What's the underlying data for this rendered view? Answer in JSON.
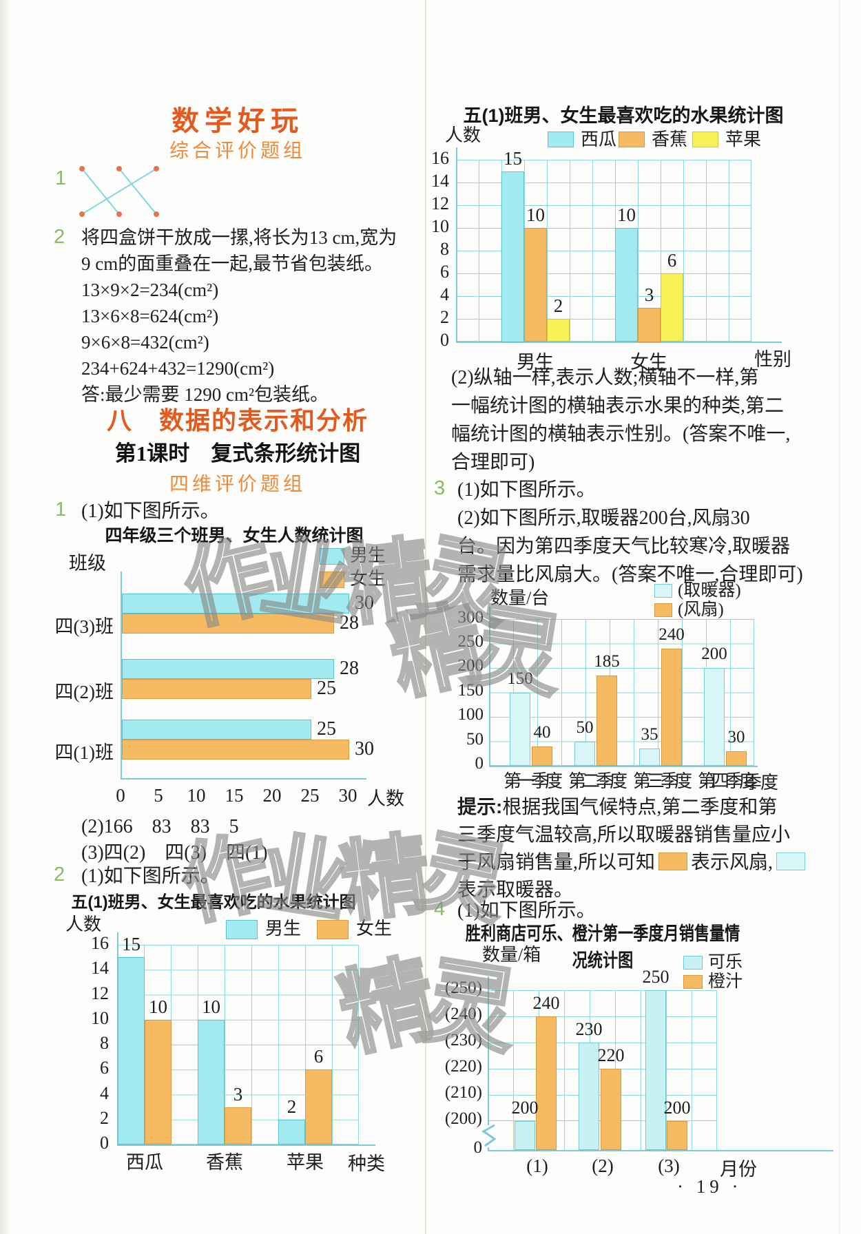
{
  "page": {
    "footer": "· 19 ·",
    "watermark_full": "作业精灵",
    "watermark_short": "精灵",
    "colors": {
      "accent_orange": "#e4591d",
      "sub_orange": "#f08a3a",
      "item_green": "#8cba62",
      "grid_cyan": "#8ed9e0",
      "bar_cyan": "#a3eaf0",
      "bar_orange": "#f6bb62",
      "bar_yellow": "#f5f156",
      "bar_pale_cyan": "#d8f5f7"
    }
  },
  "left": {
    "section_title": "数学好玩",
    "section_subtitle": "综合评价题组",
    "item1_num": "1",
    "item2_num": "2",
    "item2_lines": [
      "将四盒饼干放成一摞,将长为13 cm,宽为",
      "9 cm的面重叠在一起,最节省包装纸。",
      "13×9×2=234(cm²)",
      "13×6×8=624(cm²)",
      "9×6×8=432(cm²)",
      "234+624+432=1290(cm²)",
      "答:最少需要 1290 cm²包装纸。"
    ],
    "chapter_title": "八　数据的表示和分析",
    "lesson_title": "第1课时　复式条形统计图",
    "lesson_subtitle": "四维评价题组",
    "q1_num": "1",
    "q1_a1": "(1)如下图所示。",
    "q1_a2": "(2)166　83　83　5",
    "q1_a3": "(3)四(2)　四(3)　四(1)",
    "q2_num": "2",
    "q2_a1": "(1)如下图所示。"
  },
  "right": {
    "q2_a2_lines": [
      "(2)纵轴一样,表示人数;横轴不一样,第",
      "一幅统计图的横轴表示水果的种类,第二",
      "幅统计图的横轴表示性别。(答案不唯一,",
      "合理即可)"
    ],
    "q3_num": "3",
    "q3_a1": "(1)如下图所示。",
    "q3_a2_lines": [
      "(2)如下图所示,取暖器200台,风扇30",
      "台。因为第四季度天气比较寒冷,取暖器",
      "需求量比风扇大。(答案不唯一,合理即可)"
    ],
    "hint_label": "提示:",
    "hint_l1": "根据我国气候特点,第二季度和第",
    "hint_l2": "三季度气温较高,所以取暖器销售量应小",
    "hint_l3a": "于风扇销售量,所以可知",
    "hint_l3b": "表示风扇,",
    "hint_l4": "表示取暖器。",
    "q4_num": "4",
    "q4_a1": "(1)如下图所示。"
  },
  "chart_data": [
    {
      "id": "class_boy_girl_counts",
      "type": "bar",
      "orientation": "horizontal",
      "title": "四年级三个班男、女生人数统计图",
      "y_axis_name": "班级",
      "x_axis_name": "人数",
      "x_ticks": [
        0,
        5,
        10,
        15,
        20,
        25,
        30
      ],
      "xlim": [
        0,
        30
      ],
      "grid": false,
      "legend_position": "top-right",
      "categories": [
        "四(3)班",
        "四(2)班",
        "四(1)班"
      ],
      "series": [
        {
          "name": "男生",
          "color": "#a3eaf0",
          "values": [
            30,
            28,
            25
          ]
        },
        {
          "name": "女生",
          "color": "#f6bb62",
          "values": [
            28,
            25,
            30
          ]
        }
      ]
    },
    {
      "id": "fruit_by_kind",
      "type": "bar",
      "orientation": "vertical",
      "title": "五(1)班男、女生最喜欢吃的水果统计图",
      "y_axis_name": "人数",
      "x_axis_name": "种类",
      "y_ticks": [
        0,
        2,
        4,
        6,
        8,
        10,
        12,
        14,
        16
      ],
      "ylim": [
        0,
        16
      ],
      "grid": true,
      "legend_position": "top",
      "categories": [
        "西瓜",
        "香蕉",
        "苹果"
      ],
      "series": [
        {
          "name": "男生",
          "color": "#a3eaf0",
          "values": [
            15,
            10,
            2
          ]
        },
        {
          "name": "女生",
          "color": "#f6bb62",
          "values": [
            10,
            3,
            6
          ]
        }
      ]
    },
    {
      "id": "fruit_by_gender",
      "type": "bar",
      "orientation": "vertical",
      "title": "五(1)班男、女生最喜欢吃的水果统计图",
      "y_axis_name": "人数",
      "x_axis_name": "性别",
      "y_ticks": [
        0,
        2,
        4,
        6,
        8,
        10,
        12,
        14,
        16
      ],
      "ylim": [
        0,
        16
      ],
      "grid": true,
      "legend_position": "top",
      "categories": [
        "男生",
        "女生"
      ],
      "series": [
        {
          "name": "西瓜",
          "color": "#a3eaf0",
          "values": [
            15,
            10
          ]
        },
        {
          "name": "香蕉",
          "color": "#f6bb62",
          "values": [
            10,
            3
          ]
        },
        {
          "name": "苹果",
          "color": "#f5f156",
          "values": [
            2,
            6
          ]
        }
      ]
    },
    {
      "id": "heater_fan_quarters",
      "type": "bar",
      "orientation": "vertical",
      "title": "",
      "y_axis_name": "数量/台",
      "x_axis_name": "季度",
      "y_ticks": [
        0,
        50,
        100,
        150,
        200,
        250,
        300
      ],
      "ylim": [
        0,
        300
      ],
      "grid": true,
      "legend_position": "top-right",
      "categories": [
        "第一季度",
        "第二季度",
        "第三季度",
        "第四季度"
      ],
      "series": [
        {
          "name": "(取暖器)",
          "color": "#d8f5f7",
          "values": [
            150,
            50,
            35,
            200
          ]
        },
        {
          "name": "(风扇)",
          "color": "#f6bb62",
          "values": [
            40,
            185,
            240,
            30
          ]
        }
      ]
    },
    {
      "id": "store_monthly_sales",
      "type": "bar",
      "orientation": "vertical",
      "title": "胜利商店可乐、橙汁第一季度月销售量情况统计图",
      "y_axis_name": "数量/箱",
      "x_axis_name": "月份",
      "y_tick_labels": [
        "(250)",
        "(240)",
        "(230)",
        "(220)",
        "(210)",
        "(200)",
        "0"
      ],
      "axis_break": true,
      "ylim_display": [
        200,
        250
      ],
      "grid": true,
      "legend_position": "top-right",
      "categories": [
        "(1)",
        "(2)",
        "(3)"
      ],
      "series": [
        {
          "name": "可乐",
          "color": "#c9f1f3",
          "values": [
            200,
            230,
            250
          ]
        },
        {
          "name": "橙汁",
          "color": "#f6bb62",
          "values": [
            240,
            220,
            200
          ]
        }
      ]
    }
  ]
}
